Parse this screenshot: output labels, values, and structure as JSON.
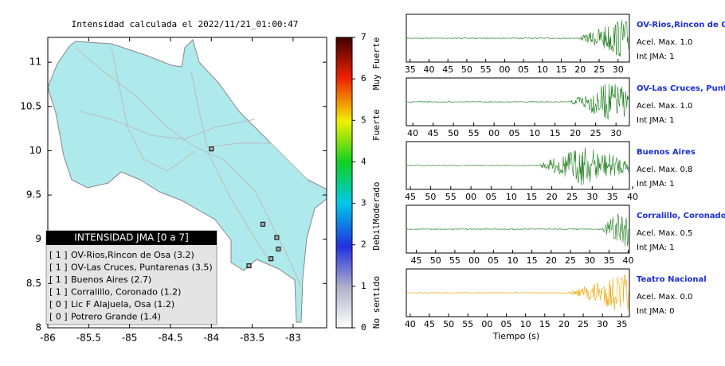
{
  "map": {
    "title": "Intensidad calculada el 2022/11/21_01:00:47",
    "xlim": [
      -86,
      -82.59
    ],
    "ylim": [
      8,
      11.28
    ],
    "xticks": [
      -86,
      -85.5,
      -85,
      -84.5,
      -84,
      -83.5,
      -83
    ],
    "yticks": [
      8,
      8.5,
      9,
      9.5,
      10,
      10.5,
      11
    ],
    "stations": [
      {
        "lon": -84.0,
        "lat": 10.02
      },
      {
        "lon": -83.37,
        "lat": 9.17
      },
      {
        "lon": -83.2,
        "lat": 9.02
      },
      {
        "lon": -83.18,
        "lat": 8.89
      },
      {
        "lon": -83.27,
        "lat": 8.78
      },
      {
        "lon": -83.54,
        "lat": 8.7
      }
    ],
    "legend": {
      "title": "INTENSIDAD JMA [0 a 7]",
      "entries": [
        {
          "jma": "[ 1 ]",
          "name": "OV-Rios,Rincon de Osa (3.2)"
        },
        {
          "jma": "[ 1 ]",
          "name": "OV-Las Cruces, Puntarenas (3.5)"
        },
        {
          "jma": "[ 1 ]",
          "name": "Buenos Aires (2.7)"
        },
        {
          "jma": "[ 1 ]",
          "name": "Corralillo, Coronado (1.2)"
        },
        {
          "jma": "[ 0 ]",
          "name": "Lic F Alajuela, Osa (1.2)"
        },
        {
          "jma": "[ 0 ]",
          "name": "Potrero Grande (1.4)"
        }
      ]
    }
  },
  "colorbar": {
    "clim": [
      0,
      7
    ],
    "ticks": [
      0,
      1,
      2,
      3,
      4,
      5,
      6,
      7
    ],
    "labels": [
      "Muy Fuerte",
      "Fuerte",
      "Moderado",
      "Debil",
      "No sentido"
    ]
  },
  "waveforms": {
    "xlabel": "Tiempo (s)",
    "panels": [
      {
        "title": "OV-Rios,Rincon de Osa",
        "acel": "Acel. Max. 1.0",
        "int": "Int JMA: 1",
        "color": "#1b7d1b",
        "xlim": [
          34,
          93
        ],
        "xticks": [
          35,
          40,
          45,
          50,
          55,
          {
            "value": 60,
            "label": "00"
          },
          {
            "value": 65,
            "label": "05"
          },
          {
            "value": 70,
            "label": "10"
          },
          {
            "value": 75,
            "label": "15"
          },
          {
            "value": 80,
            "label": "20"
          },
          {
            "value": 85,
            "label": "25"
          },
          {
            "value": 90,
            "label": "30"
          }
        ]
      },
      {
        "title": "OV-Las Cruces, Puntarenas",
        "acel": "Acel. Max. 1.0",
        "int": "Int JMA: 1",
        "color": "#1b7d1b",
        "xlim": [
          38.4,
          93.3
        ],
        "xticks": [
          40,
          45,
          50,
          55,
          {
            "value": 60,
            "label": "00"
          },
          {
            "value": 65,
            "label": "05"
          },
          {
            "value": 70,
            "label": "10"
          },
          {
            "value": 75,
            "label": "15"
          },
          {
            "value": 80,
            "label": "20"
          },
          {
            "value": 85,
            "label": "25"
          },
          {
            "value": 90,
            "label": "30"
          }
        ]
      },
      {
        "title": "Buenos Aires",
        "acel": "Acel. Max. 0.8",
        "int": "Int JMA: 1",
        "color": "#1b7d1b",
        "xlim": [
          44,
          99.2
        ],
        "xticks": [
          45,
          50,
          55,
          {
            "value": 60,
            "label": "00"
          },
          {
            "value": 65,
            "label": "05"
          },
          {
            "value": 70,
            "label": "10"
          },
          {
            "value": 75,
            "label": "15"
          },
          {
            "value": 80,
            "label": "20"
          },
          {
            "value": 85,
            "label": "25"
          },
          {
            "value": 90,
            "label": "30"
          },
          {
            "value": 95,
            "label": "35"
          },
          {
            "value": 100,
            "label": "40"
          }
        ]
      },
      {
        "title": "Corralillo, Coronado",
        "acel": "Acel. Max. 0.5",
        "int": "Int JMA: 1",
        "color": "#1b7d1b",
        "xlim": [
          42.4,
          100.3
        ],
        "xticks": [
          45,
          50,
          55,
          {
            "value": 60,
            "label": "00"
          },
          {
            "value": 65,
            "label": "05"
          },
          {
            "value": 70,
            "label": "10"
          },
          {
            "value": 75,
            "label": "15"
          },
          {
            "value": 80,
            "label": "20"
          },
          {
            "value": 85,
            "label": "25"
          },
          {
            "value": 90,
            "label": "30"
          },
          {
            "value": 95,
            "label": "35"
          },
          {
            "value": 100,
            "label": "40"
          }
        ]
      },
      {
        "title": "Teatro Nacional",
        "acel": "Acel. Max. 0.0",
        "int": "Int JMA: 0",
        "color": "#f0a500",
        "xlim": [
          39,
          97
        ],
        "xticks": [
          40,
          45,
          50,
          55,
          {
            "value": 60,
            "label": "00"
          },
          {
            "value": 65,
            "label": "05"
          },
          {
            "value": 70,
            "label": "10"
          },
          {
            "value": 75,
            "label": "15"
          },
          {
            "value": 80,
            "label": "20"
          },
          {
            "value": 85,
            "label": "25"
          },
          {
            "value": 90,
            "label": "30"
          },
          {
            "value": 95,
            "label": "35"
          }
        ]
      }
    ]
  }
}
